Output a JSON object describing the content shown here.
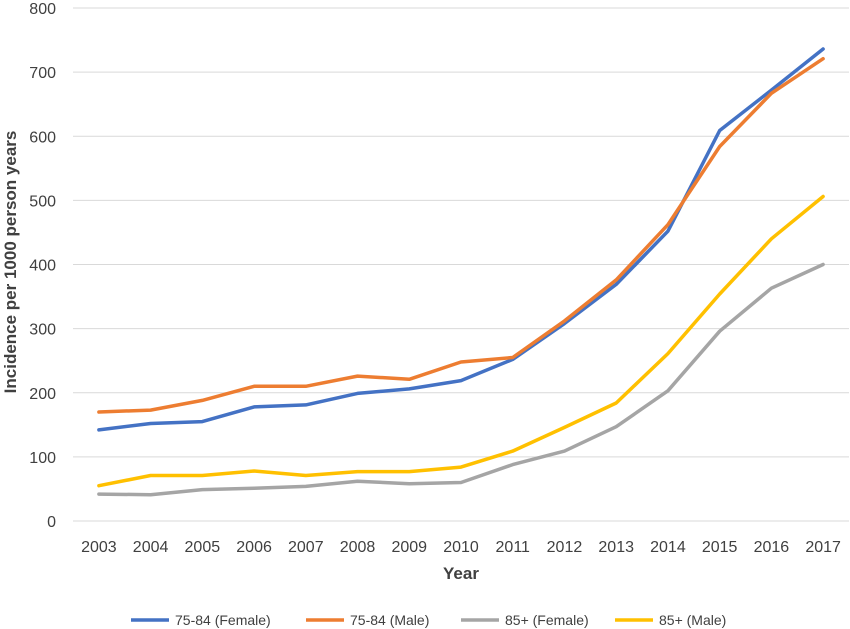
{
  "chart_data": {
    "type": "line",
    "title": "",
    "xlabel": "Year",
    "ylabel": "Incidence per 1000 person years",
    "ylim": [
      0,
      800
    ],
    "yticks": [
      0,
      100,
      200,
      300,
      400,
      500,
      600,
      700,
      800
    ],
    "grid": true,
    "legend_position": "bottom",
    "categories": [
      "2003",
      "2004",
      "2005",
      "2006",
      "2007",
      "2008",
      "2009",
      "2010",
      "2011",
      "2012",
      "2013",
      "2014",
      "2015",
      "2016",
      "2017"
    ],
    "series": [
      {
        "name": "75-84 (Female)",
        "color": "#4472c4",
        "values": [
          142,
          152,
          155,
          178,
          181,
          199,
          206,
          219,
          252,
          308,
          369,
          452,
          609,
          672,
          736
        ]
      },
      {
        "name": "75-84 (Male)",
        "color": "#ed7d31",
        "values": [
          170,
          173,
          188,
          210,
          210,
          226,
          221,
          248,
          255,
          312,
          376,
          462,
          584,
          667,
          721
        ]
      },
      {
        "name": "85+ (Female)",
        "color": "#a5a5a5",
        "values": [
          42,
          41,
          49,
          51,
          54,
          62,
          58,
          60,
          88,
          109,
          147,
          203,
          296,
          363,
          400
        ]
      },
      {
        "name": "85+ (Male)",
        "color": "#ffc000",
        "values": [
          55,
          71,
          71,
          78,
          71,
          77,
          77,
          84,
          109,
          146,
          184,
          261,
          354,
          440,
          506
        ]
      }
    ]
  }
}
